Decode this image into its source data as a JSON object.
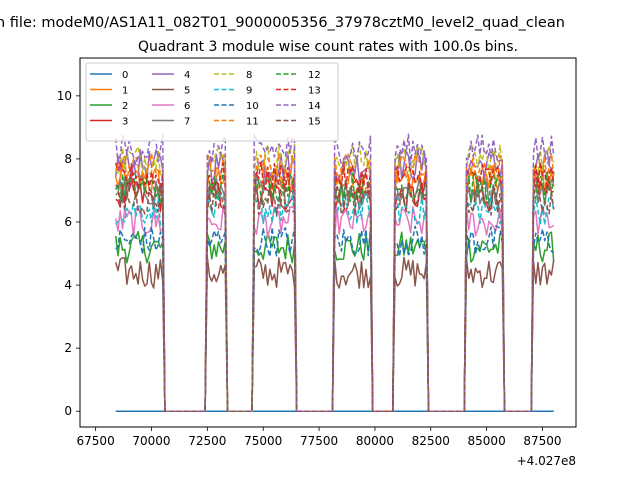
{
  "chart_data": {
    "type": "line",
    "suptitle": "n file: modeM0/AS1A11_082T01_9000005356_37978cztM0_level2_quad_clean",
    "title": "Quadrant 3 module wise count rates with 100.0s bins.",
    "xlabel": "",
    "ylabel": "",
    "offset_text": "+4.027e8",
    "xlim": [
      66800,
      89000
    ],
    "ylim": [
      -0.5,
      11.2
    ],
    "x_ticks": [
      67500,
      70000,
      72500,
      75000,
      77500,
      80000,
      82500,
      85000,
      87500
    ],
    "x_tick_labels": [
      "67500",
      "70000",
      "72500",
      "75000",
      "77500",
      "80000",
      "82500",
      "85000",
      "87500"
    ],
    "y_ticks": [
      0,
      2,
      4,
      6,
      8,
      10
    ],
    "y_tick_labels": [
      "0",
      "2",
      "4",
      "6",
      "8",
      "10"
    ],
    "grid": false,
    "legend_position": "top-left",
    "legend_columns": 4,
    "on_intervals": [
      [
        68400,
        70500
      ],
      [
        72500,
        73300
      ],
      [
        74600,
        76400
      ],
      [
        78200,
        79800
      ],
      [
        80900,
        82300
      ],
      [
        84100,
        85700
      ],
      [
        87100,
        88000
      ]
    ],
    "series": [
      {
        "name": "0",
        "color": "#1f77b4",
        "dash": "solid",
        "level": 0.0
      },
      {
        "name": "1",
        "color": "#ff7f0e",
        "dash": "solid",
        "level": 7.3
      },
      {
        "name": "2",
        "color": "#2ca02c",
        "dash": "solid",
        "level": 5.1
      },
      {
        "name": "3",
        "color": "#d62728",
        "dash": "solid",
        "level": 6.9
      },
      {
        "name": "4",
        "color": "#9467bd",
        "dash": "solid",
        "level": 7.8
      },
      {
        "name": "5",
        "color": "#8c564b",
        "dash": "solid",
        "level": 4.3
      },
      {
        "name": "6",
        "color": "#e377c2",
        "dash": "solid",
        "level": 6.1
      },
      {
        "name": "7",
        "color": "#7f7f7f",
        "dash": "solid",
        "level": 7.0
      },
      {
        "name": "8",
        "color": "#bcbd22",
        "dash": "dashed",
        "level": 7.9
      },
      {
        "name": "9",
        "color": "#17becf",
        "dash": "dashed",
        "level": 6.5
      },
      {
        "name": "10",
        "color": "#1f77b4",
        "dash": "dashed",
        "level": 5.4
      },
      {
        "name": "11",
        "color": "#ff7f0e",
        "dash": "dashed",
        "level": 7.6
      },
      {
        "name": "12",
        "color": "#2ca02c",
        "dash": "dashed",
        "level": 7.2
      },
      {
        "name": "13",
        "color": "#d62728",
        "dash": "dashed",
        "level": 7.4
      },
      {
        "name": "14",
        "color": "#9467bd",
        "dash": "dashed",
        "level": 8.2
      },
      {
        "name": "15",
        "color": "#8c564b",
        "dash": "dashed",
        "level": 6.8
      }
    ]
  }
}
